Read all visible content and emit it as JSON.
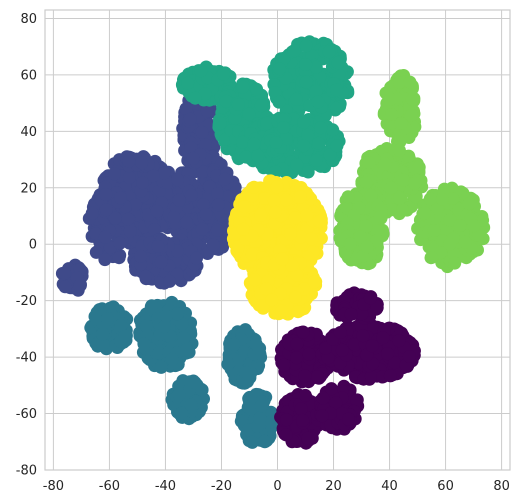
{
  "chart_data": {
    "type": "scatter",
    "title": "",
    "xlabel": "",
    "ylabel": "",
    "xlim": [
      -83,
      83
    ],
    "ylim": [
      -80,
      83
    ],
    "grid": true,
    "legend": "none",
    "x_ticks": [
      -80,
      -60,
      -40,
      -20,
      0,
      20,
      40,
      60,
      80
    ],
    "y_ticks": [
      -80,
      -60,
      -40,
      -20,
      0,
      20,
      40,
      60,
      80
    ],
    "series": [
      {
        "color": "#3f4a8a",
        "clusters": [
          {
            "cx": -28,
            "cy": 40,
            "rx": 6,
            "ry": 14,
            "n": 110
          },
          {
            "cx": -50,
            "cy": 16,
            "rx": 14,
            "ry": 16,
            "n": 320
          },
          {
            "cx": -26,
            "cy": 14,
            "rx": 12,
            "ry": 18,
            "n": 260
          },
          {
            "cx": -60,
            "cy": 6,
            "rx": 8,
            "ry": 12,
            "n": 110
          },
          {
            "cx": -40,
            "cy": -6,
            "rx": 12,
            "ry": 8,
            "n": 140
          },
          {
            "cx": -73,
            "cy": -12,
            "rx": 4,
            "ry": 5,
            "n": 45
          }
        ]
      },
      {
        "color": "#21a685",
        "clusters": [
          {
            "cx": -25,
            "cy": 57,
            "rx": 9,
            "ry": 6,
            "n": 110
          },
          {
            "cx": -12,
            "cy": 43,
            "rx": 9,
            "ry": 14,
            "n": 160
          },
          {
            "cx": 12,
            "cy": 58,
            "rx": 14,
            "ry": 14,
            "n": 240
          },
          {
            "cx": 5,
            "cy": 35,
            "rx": 18,
            "ry": 10,
            "n": 230
          }
        ]
      },
      {
        "color": "#7ad151",
        "clusters": [
          {
            "cx": 44,
            "cy": 48,
            "rx": 6,
            "ry": 12,
            "n": 120
          },
          {
            "cx": 40,
            "cy": 22,
            "rx": 12,
            "ry": 12,
            "n": 200
          },
          {
            "cx": 62,
            "cy": 6,
            "rx": 12,
            "ry": 14,
            "n": 220
          },
          {
            "cx": 30,
            "cy": 6,
            "rx": 8,
            "ry": 14,
            "n": 170
          }
        ]
      },
      {
        "color": "#fde725",
        "clusters": [
          {
            "cx": 0,
            "cy": 5,
            "rx": 16,
            "ry": 18,
            "n": 520
          },
          {
            "cx": 2,
            "cy": -15,
            "rx": 12,
            "ry": 10,
            "n": 230
          }
        ]
      },
      {
        "color": "#2a788e",
        "clusters": [
          {
            "cx": -60,
            "cy": -30,
            "rx": 7,
            "ry": 8,
            "n": 140
          },
          {
            "cx": -40,
            "cy": -32,
            "rx": 10,
            "ry": 12,
            "n": 220
          },
          {
            "cx": -32,
            "cy": -55,
            "rx": 6,
            "ry": 7,
            "n": 110
          },
          {
            "cx": -12,
            "cy": -40,
            "rx": 6,
            "ry": 10,
            "n": 130
          },
          {
            "cx": -7,
            "cy": -62,
            "rx": 6,
            "ry": 9,
            "n": 130
          }
        ]
      },
      {
        "color": "#440154",
        "clusters": [
          {
            "cx": 10,
            "cy": -40,
            "rx": 9,
            "ry": 9,
            "n": 200
          },
          {
            "cx": 33,
            "cy": -38,
            "rx": 16,
            "ry": 10,
            "n": 320
          },
          {
            "cx": 8,
            "cy": -62,
            "rx": 7,
            "ry": 9,
            "n": 150
          },
          {
            "cx": 22,
            "cy": -58,
            "rx": 7,
            "ry": 8,
            "n": 110
          },
          {
            "cx": 28,
            "cy": -22,
            "rx": 8,
            "ry": 5,
            "n": 90
          }
        ]
      }
    ]
  }
}
